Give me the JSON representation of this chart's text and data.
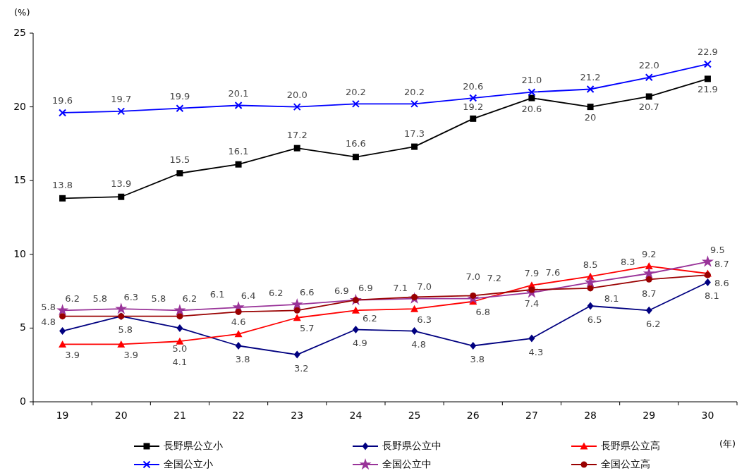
{
  "chart_data": {
    "type": "line",
    "ylabel": "(%)",
    "xlabel": "(年)",
    "categories": [
      "19",
      "20",
      "21",
      "22",
      "23",
      "24",
      "25",
      "26",
      "27",
      "28",
      "29",
      "30"
    ],
    "ylim": [
      0,
      25
    ],
    "yticks": [
      0,
      5,
      10,
      15,
      20,
      25
    ],
    "grid": false,
    "legend": "bottom",
    "series": [
      {
        "name": "長野県公立小",
        "color": "#000000",
        "marker": "square",
        "values": [
          13.8,
          13.9,
          15.5,
          16.1,
          17.2,
          16.6,
          17.3,
          19.2,
          20.6,
          20,
          20.7,
          21.9
        ],
        "value_labels": [
          "13.8",
          "13.9",
          "15.5",
          "16.1",
          "17.2",
          "16.6",
          "17.3",
          "19.2",
          "20.6",
          "20",
          "20.7",
          "21.9"
        ]
      },
      {
        "name": "長野県公立中",
        "color": "#000080",
        "marker": "diamond",
        "values": [
          4.8,
          5.8,
          5.0,
          3.8,
          3.2,
          4.9,
          4.8,
          3.8,
          4.3,
          6.5,
          6.2,
          8.1
        ],
        "value_labels": [
          "4.8",
          "5.8",
          "5.0",
          "3.8",
          "3.2",
          "4.9",
          "4.8",
          "3.8",
          "4.3",
          "6.5",
          "6.2",
          "8.1"
        ]
      },
      {
        "name": "長野県公立高",
        "color": "#ff0000",
        "marker": "triangle",
        "values": [
          3.9,
          3.9,
          4.1,
          4.6,
          5.7,
          6.2,
          6.3,
          6.8,
          7.9,
          8.5,
          9.2,
          8.7
        ],
        "value_labels": [
          "3.9",
          "3.9",
          "4.1",
          "4.6",
          "5.7",
          "6.2",
          "6.3",
          "6.8",
          "7.9",
          "8.5",
          "9.2",
          "8.7"
        ]
      },
      {
        "name": "全国公立小",
        "color": "#0000ff",
        "marker": "cross",
        "values": [
          19.6,
          19.7,
          19.9,
          20.1,
          20.0,
          20.2,
          20.2,
          20.6,
          21.0,
          21.2,
          22.0,
          22.9
        ],
        "value_labels": [
          "19.6",
          "19.7",
          "19.9",
          "20.1",
          "20.0",
          "20.2",
          "20.2",
          "20.6",
          "21.0",
          "21.2",
          "22.0",
          "22.9"
        ]
      },
      {
        "name": "全国公立中",
        "color": "#993399",
        "marker": "star",
        "values": [
          6.2,
          6.3,
          6.2,
          6.4,
          6.6,
          6.9,
          7.0,
          7.0,
          7.4,
          8.1,
          8.7,
          9.5
        ],
        "value_labels": [
          "6.2",
          "6.3",
          "6.2",
          "6.4",
          "6.6",
          "6.9",
          "7.0",
          "7.0",
          "7.4",
          "8.1",
          "8.7",
          "9.5"
        ]
      },
      {
        "name": "全国公立高",
        "color": "#990000",
        "marker": "circle",
        "values": [
          5.8,
          5.8,
          5.8,
          6.1,
          6.2,
          6.9,
          7.1,
          7.2,
          7.6,
          7.7,
          8.3,
          8.6
        ],
        "value_labels": [
          "5.8",
          "5.8",
          "5.8",
          "6.1",
          "6.2",
          "6.9",
          "7.1",
          "7.2",
          "7.6",
          null,
          "8.3",
          "8.6"
        ]
      }
    ]
  }
}
